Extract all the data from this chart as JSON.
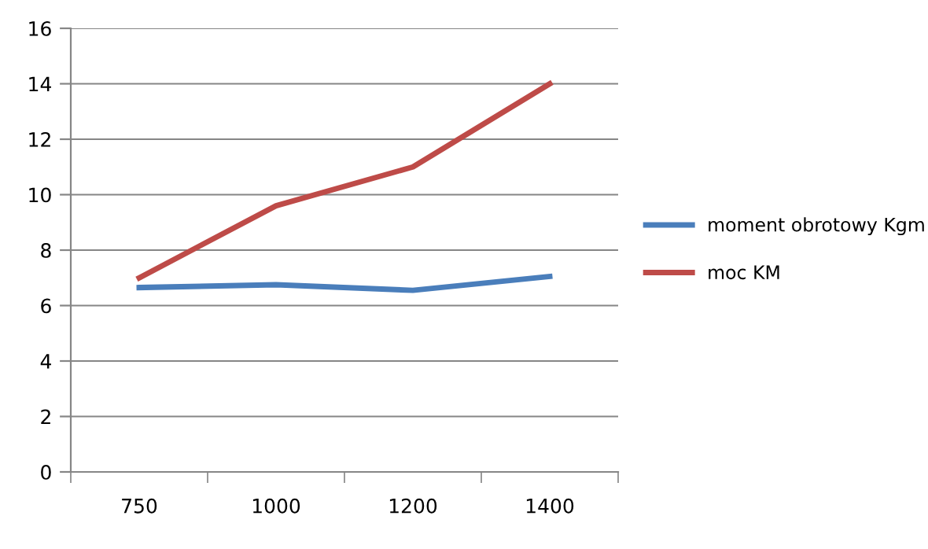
{
  "chart_data": {
    "type": "line",
    "categories": [
      "750",
      "1000",
      "1200",
      "1400"
    ],
    "series": [
      {
        "name": "moment obrotowy Kgm",
        "color": "#4a7ebb",
        "values": [
          6.65,
          6.75,
          6.55,
          7.05
        ]
      },
      {
        "name": "moc KM",
        "color": "#be4b48",
        "values": [
          7.0,
          9.6,
          11.0,
          14.0
        ]
      }
    ],
    "ylim": [
      0,
      16
    ],
    "yticks": [
      0,
      2,
      4,
      6,
      8,
      10,
      12,
      14,
      16
    ],
    "grid": "y",
    "legend": "right",
    "line_style": "solid",
    "marker": "none"
  }
}
